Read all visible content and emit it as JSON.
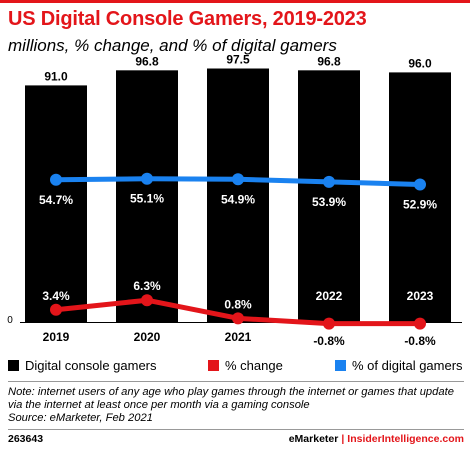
{
  "title": "US Digital Console Gamers, 2019-2023",
  "subtitle": "millions, % change, and % of digital gamers",
  "chart_data": {
    "type": "bar",
    "categories": [
      "2019",
      "2020",
      "2021",
      "2022",
      "2023"
    ],
    "y_axis_tick": "0",
    "ylim": [
      0,
      100
    ],
    "grid": false,
    "legend_position": "bottom",
    "series": [
      {
        "name": "Digital console gamers",
        "type": "bar",
        "color": "#000000",
        "values": [
          91.0,
          96.8,
          97.5,
          96.8,
          96.0
        ],
        "labels": [
          "91.0",
          "96.8",
          "97.5",
          "96.8",
          "96.0"
        ]
      },
      {
        "name": "% change",
        "type": "line",
        "color": "#e3151a",
        "values": [
          3.4,
          6.3,
          0.8,
          -0.8,
          -0.8
        ],
        "labels": [
          "3.4%",
          "6.3%",
          "0.8%",
          "-0.8%",
          "-0.8%"
        ]
      },
      {
        "name": "% of digital gamers",
        "type": "line",
        "color": "#1a82f0",
        "values": [
          54.7,
          55.1,
          54.9,
          53.9,
          52.9
        ],
        "labels": [
          "54.7%",
          "55.1%",
          "54.9%",
          "53.9%",
          "52.9%"
        ]
      }
    ]
  },
  "note": "Note: internet users of any age who play games through the internet or games that update via the internet at least once per month via a gaming console",
  "source": "Source: eMarketer, Feb 2021",
  "footer": {
    "chart_id": "263643",
    "brand": "eMarketer",
    "separator": "|",
    "brand2": "InsiderIntelligence.com"
  }
}
